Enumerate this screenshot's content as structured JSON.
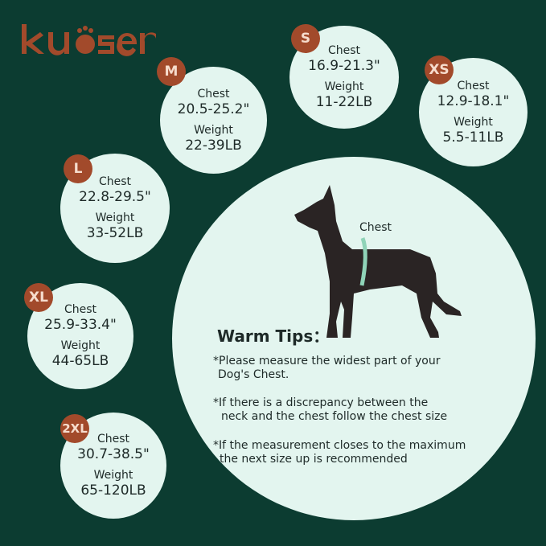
{
  "brand": {
    "logo_text": "kuoser",
    "color": "#a24a2b"
  },
  "sizes": [
    {
      "size": "M",
      "chest_label": "Chest",
      "chest": "20.5-25.2\"",
      "weight_label": "Weight",
      "weight": "22-39LB"
    },
    {
      "size": "S",
      "chest_label": "Chest",
      "chest": "16.9-21.3\"",
      "weight_label": "Weight",
      "weight": "11-22LB"
    },
    {
      "size": "XS",
      "chest_label": "Chest",
      "chest": "12.9-18.1\"",
      "weight_label": "Weight",
      "weight": "5.5-11LB"
    },
    {
      "size": "L",
      "chest_label": "Chest",
      "chest": "22.8-29.5\"",
      "weight_label": "Weight",
      "weight": "33-52LB"
    },
    {
      "size": "XL",
      "chest_label": "Chest",
      "chest": "25.9-33.4\"",
      "weight_label": "Weight",
      "weight": "44-65LB"
    },
    {
      "size": "2XL",
      "chest_label": "Chest",
      "chest": "30.7-38.5\"",
      "weight_label": "Weight",
      "weight": "65-120LB"
    }
  ],
  "diagram": {
    "chest_label": "Chest"
  },
  "tips": {
    "title": "Warm Tips：",
    "items": [
      [
        "*Please measure the widest part of your",
        "Dog's Chest."
      ],
      [
        "*If there is a discrepancy between the",
        "neck and the chest follow the chest size"
      ],
      [
        "*If the measurement closes to the maximum",
        "the next size up is recommended"
      ]
    ]
  },
  "colors": {
    "background": "#0c3c31",
    "circle": "#e3f5ef",
    "badge": "#a24a2b",
    "dog": "#2a2424",
    "tape": "#8fd3b8"
  }
}
